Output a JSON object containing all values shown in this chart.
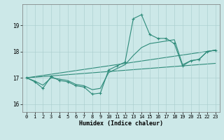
{
  "xlabel": "Humidex (Indice chaleur)",
  "xlim": [
    -0.5,
    23.5
  ],
  "ylim": [
    15.7,
    19.8
  ],
  "yticks": [
    16,
    17,
    18,
    19
  ],
  "xticks": [
    0,
    1,
    2,
    3,
    4,
    5,
    6,
    7,
    8,
    9,
    10,
    11,
    12,
    13,
    14,
    15,
    16,
    17,
    18,
    19,
    20,
    21,
    22,
    23
  ],
  "bg_color": "#cce8e8",
  "line_color": "#2e8b7a",
  "line_main": {
    "x": [
      0,
      1,
      2,
      3,
      4,
      5,
      6,
      7,
      8,
      9,
      10,
      11,
      12,
      13,
      14,
      15,
      16,
      17,
      18,
      19,
      20,
      21,
      22,
      23
    ],
    "y": [
      17.0,
      16.85,
      16.6,
      17.05,
      16.9,
      16.85,
      16.7,
      16.65,
      16.38,
      16.42,
      17.3,
      17.45,
      17.6,
      19.25,
      19.4,
      18.65,
      18.5,
      18.5,
      18.3,
      17.45,
      17.65,
      17.7,
      18.0,
      18.05
    ]
  },
  "line_smooth": {
    "x": [
      0,
      1,
      2,
      3,
      4,
      5,
      6,
      7,
      8,
      9,
      10,
      11,
      12,
      13,
      14,
      15,
      16,
      17,
      18,
      19,
      20,
      21,
      22,
      23
    ],
    "y": [
      17.0,
      16.88,
      16.72,
      17.0,
      16.95,
      16.9,
      16.75,
      16.7,
      16.55,
      16.6,
      17.2,
      17.35,
      17.5,
      17.85,
      18.15,
      18.3,
      18.35,
      18.4,
      18.45,
      17.5,
      17.65,
      17.7,
      18.0,
      18.05
    ]
  },
  "line_ref1": {
    "x": [
      0,
      23
    ],
    "y": [
      17.0,
      18.05
    ]
  },
  "line_ref2": {
    "x": [
      0,
      23
    ],
    "y": [
      17.0,
      17.55
    ]
  }
}
